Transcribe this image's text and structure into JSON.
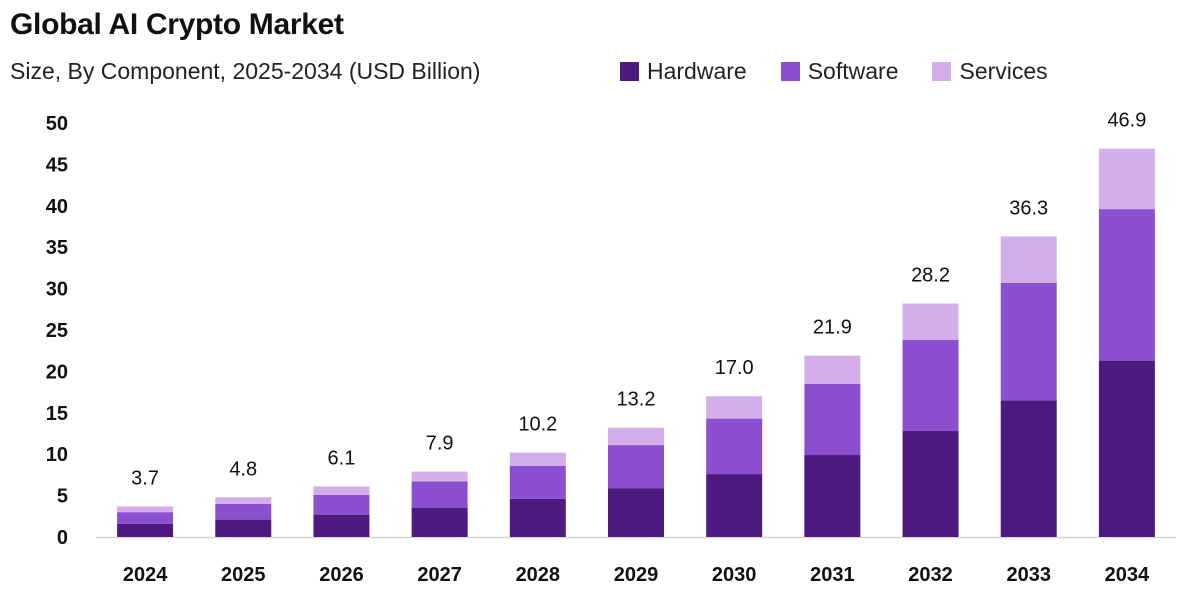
{
  "header": {
    "title": "Global AI Crypto Market",
    "subtitle": "Size, By Component, 2025-2034 (USD Billion)"
  },
  "legend": {
    "items": [
      {
        "label": "Hardware",
        "color": "#4f1a80"
      },
      {
        "label": "Software",
        "color": "#8c4fd0"
      },
      {
        "label": "Services",
        "color": "#d4aeea"
      }
    ]
  },
  "chart_data": {
    "type": "bar",
    "stacked": true,
    "title": "Global AI Crypto Market",
    "subtitle": "Size, By Component, 2025-2034 (USD Billion)",
    "categories": [
      "2024",
      "2025",
      "2026",
      "2027",
      "2028",
      "2029",
      "2030",
      "2031",
      "2032",
      "2033",
      "2034"
    ],
    "series": [
      {
        "name": "Hardware",
        "color": "#4f1a80",
        "values": [
          1.6,
          2.1,
          2.7,
          3.5,
          4.6,
          5.9,
          7.6,
          9.9,
          12.8,
          16.5,
          21.3
        ]
      },
      {
        "name": "Software",
        "color": "#8c4fd0",
        "values": [
          1.4,
          1.9,
          2.4,
          3.2,
          4.0,
          5.2,
          6.7,
          8.6,
          11.0,
          14.2,
          18.3
        ]
      },
      {
        "name": "Services",
        "color": "#d4aeea",
        "values": [
          0.7,
          0.8,
          1.0,
          1.2,
          1.6,
          2.1,
          2.7,
          3.4,
          4.4,
          5.6,
          7.3
        ]
      }
    ],
    "totals": [
      "3.7",
      "4.8",
      "6.1",
      "7.9",
      "10.2",
      "13.2",
      "17.0",
      "21.9",
      "28.2",
      "36.3",
      "46.9"
    ],
    "yticks": [
      "0",
      "5",
      "10",
      "15",
      "20",
      "25",
      "30",
      "35",
      "40",
      "45",
      "50"
    ],
    "ylim": [
      0,
      50
    ],
    "xlabel": "",
    "ylabel": "",
    "grid": false,
    "legend_position": "top-right"
  }
}
